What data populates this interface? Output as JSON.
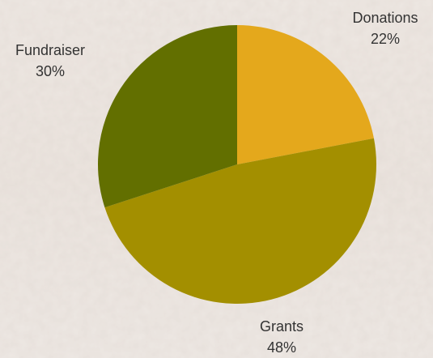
{
  "chart_data": {
    "type": "pie",
    "title": "",
    "slices": [
      {
        "label": "Donations",
        "value": 22,
        "percent_label": "22%",
        "color": "#E4A81C"
      },
      {
        "label": "Grants",
        "value": 48,
        "percent_label": "48%",
        "color": "#A38F00"
      },
      {
        "label": "Fundraiser",
        "value": 30,
        "percent_label": "30%",
        "color": "#626F00"
      }
    ],
    "start_angle": "12 o'clock",
    "direction": "clockwise",
    "legend": "none",
    "labels": "outside"
  },
  "colors": {
    "background_wash": "#EFE9E4",
    "label_text": "#333333"
  }
}
